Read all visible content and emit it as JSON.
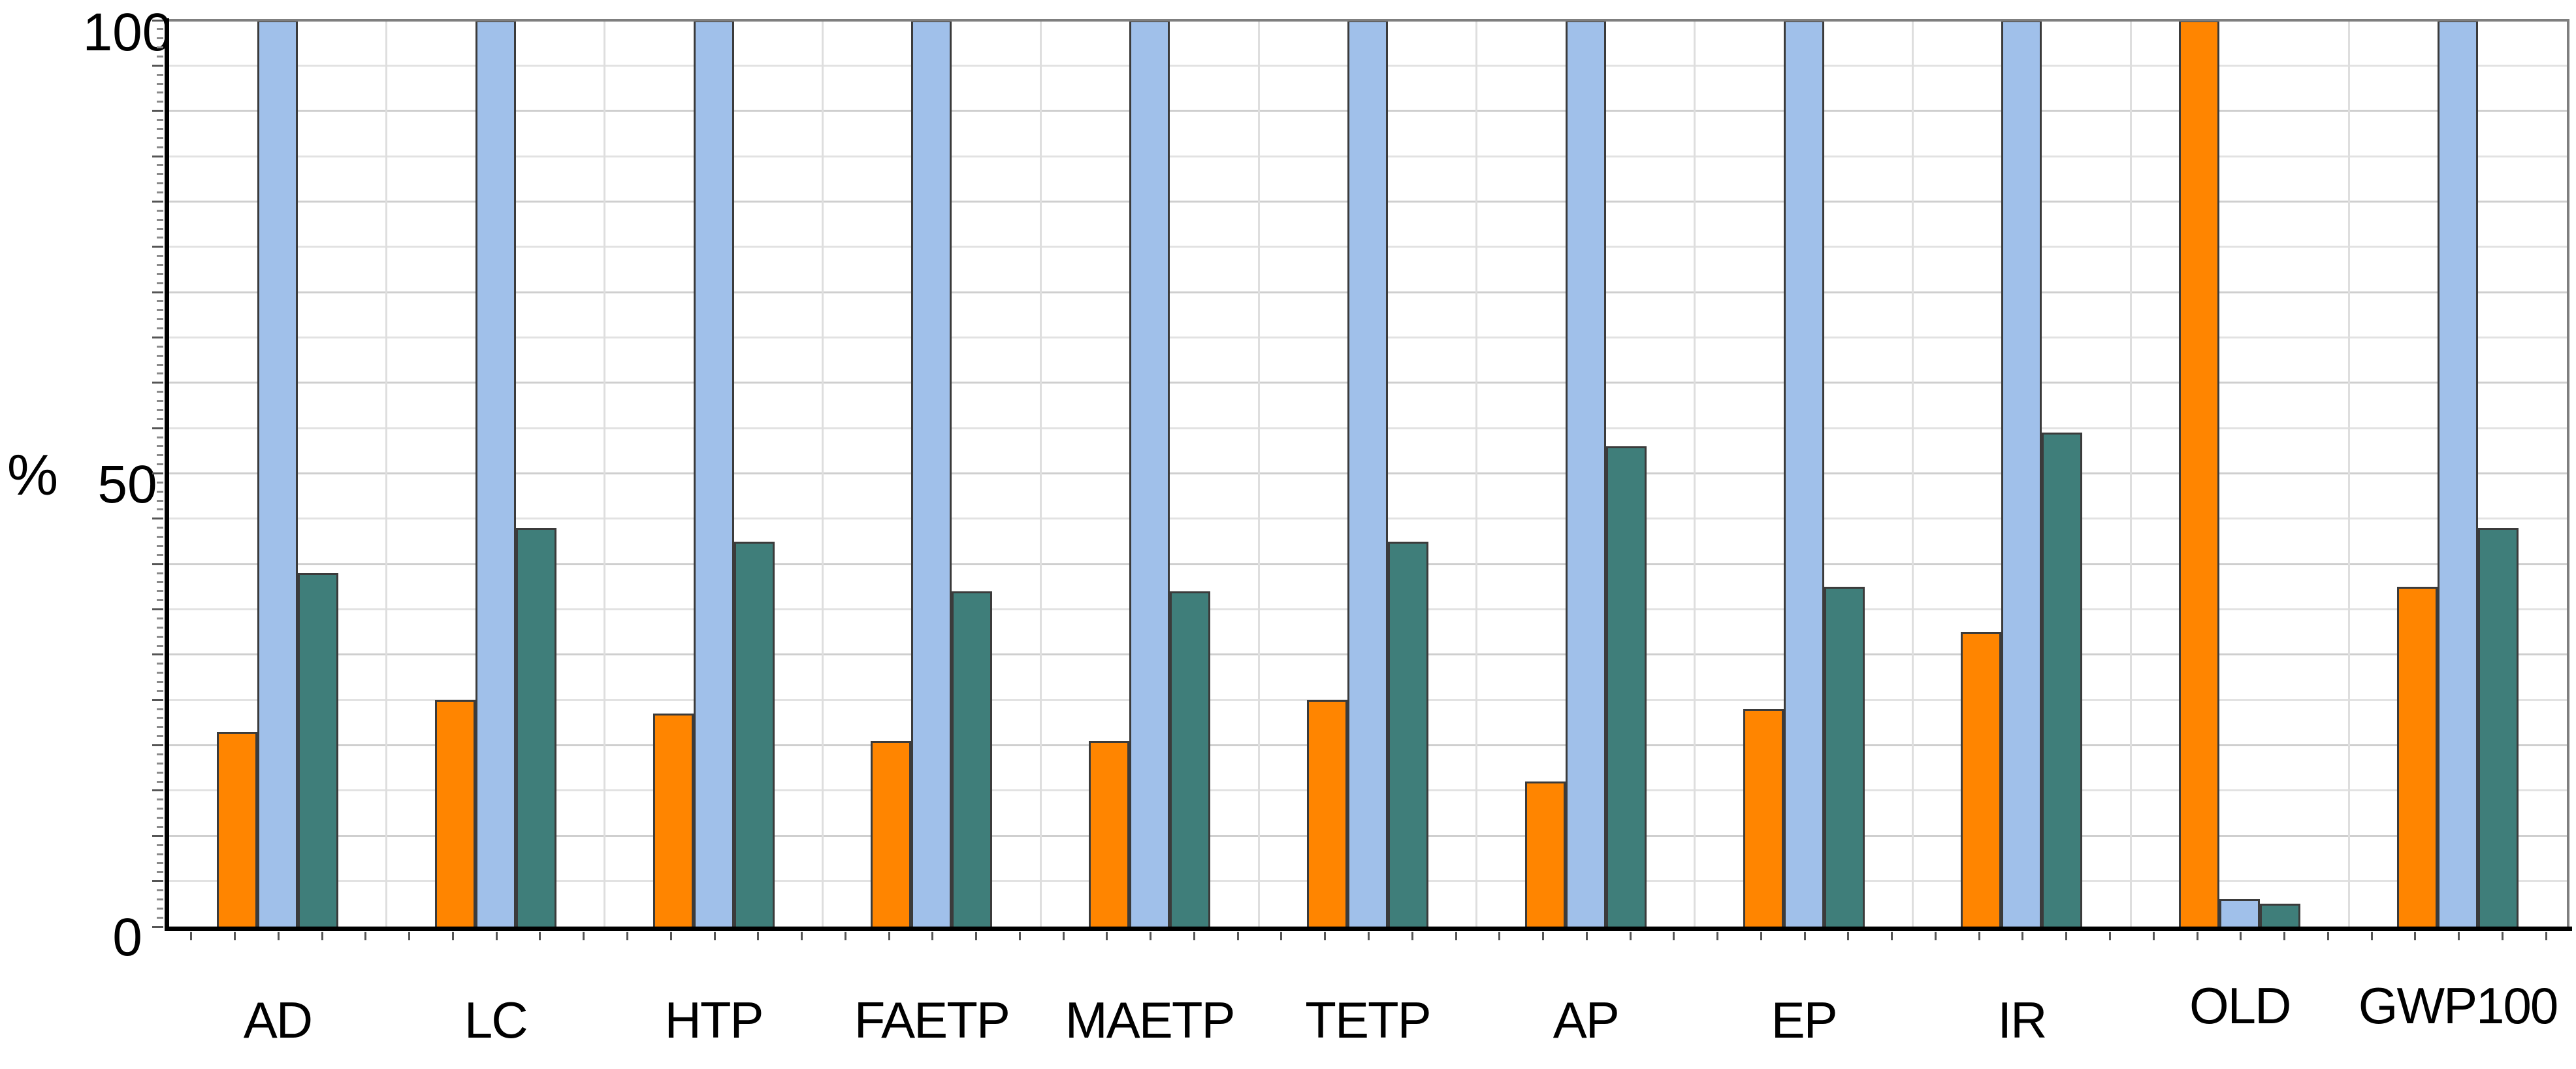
{
  "chart_data": {
    "type": "bar",
    "title": "",
    "ylabel": "%",
    "ylim": [
      0,
      100
    ],
    "y_tick_labels": [
      "100",
      "50",
      "0"
    ],
    "grid": {
      "horizontal_interval": 5,
      "vertical_category_separators": true
    },
    "legend_position": "none",
    "categories": [
      "AD",
      "LC",
      "HTP",
      "FAETP",
      "MAETP",
      "TETP",
      "AP",
      "EP",
      "IR",
      "OLD",
      "GWP100"
    ],
    "series": [
      {
        "name": "orange",
        "color": "#FF8500",
        "values": [
          21.5,
          25,
          23.5,
          20.5,
          20.5,
          25,
          16,
          24,
          32.5,
          100,
          37.5
        ]
      },
      {
        "name": "light-blue",
        "color": "#A0C0EA",
        "values": [
          100,
          100,
          100,
          100,
          100,
          100,
          100,
          100,
          100,
          3,
          100
        ]
      },
      {
        "name": "teal",
        "color": "#3F7E7A",
        "values": [
          39,
          44,
          42.5,
          37,
          37,
          42.5,
          53,
          37.5,
          54.5,
          2.5,
          44
        ]
      }
    ]
  },
  "colors": {
    "bar_border": "#3B3B3B",
    "axis": "#000000",
    "frame": "#7F7F7F",
    "grid_major": "#CFCFCF",
    "grid_minor": "#E2E2E2",
    "separator": "#DEDEDE",
    "background": "#FFFFFF"
  }
}
